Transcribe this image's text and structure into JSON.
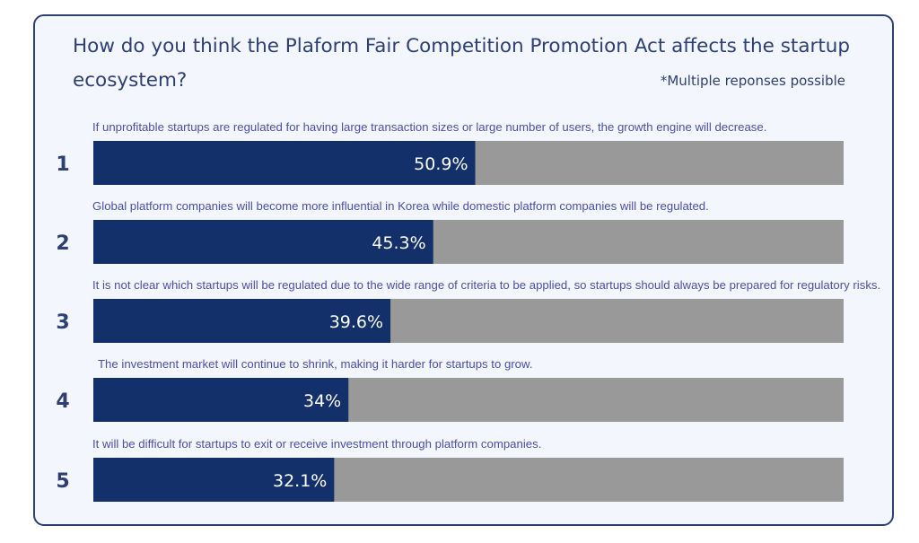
{
  "question": "How do you think the Plaform Fair Competition Promotion Act affects the startup ecosystem?",
  "note": "*Multiple reponses possible",
  "colors": {
    "bar_fill": "#13306b",
    "bar_track": "#999999",
    "option_text": "#4a4fa6",
    "title_text": "#2e3f74"
  },
  "chart_data": {
    "type": "bar",
    "orientation": "horizontal",
    "unit": "%",
    "xlim": [
      0,
      100
    ],
    "categories": [
      "If unprofitable startups are regulated for having large transaction sizes or large number of users, the growth engine will decrease.",
      "Global platform companies will become more influential in Korea while domestic platform companies will be regulated.",
      "It is not clear which startups will be regulated due to the wide range of criteria to be applied, so startups should always be prepared for regulatory risks.",
      "The investment market will continue to shrink, making it harder for startups to grow.",
      "It will be difficult for startups to exit or receive investment through platform companies."
    ],
    "ranks": [
      "1",
      "2",
      "3",
      "4",
      "5"
    ],
    "values": [
      50.9,
      45.3,
      39.6,
      34,
      32.1
    ],
    "value_labels": [
      "50.9%",
      "45.3%",
      "39.6%",
      "34%",
      "32.1%"
    ]
  }
}
